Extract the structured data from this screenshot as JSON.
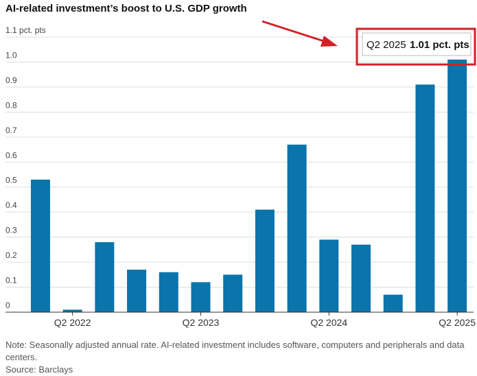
{
  "chart_data": {
    "type": "bar",
    "title": "AI-related investment’s boost to U.S. GDP growth",
    "categories": [
      null,
      "Q2 2022",
      null,
      null,
      null,
      "Q2 2023",
      null,
      null,
      null,
      "Q2 2024",
      null,
      null,
      null,
      "Q2 2025"
    ],
    "values": [
      0.53,
      0.01,
      0.28,
      0.17,
      0.16,
      0.12,
      0.15,
      0.41,
      0.67,
      0.29,
      0.27,
      0.07,
      0.91,
      1.01
    ],
    "color": "#0b74aa",
    "ylim": [
      0,
      1.1
    ],
    "yticks": [
      0,
      0.1,
      0.2,
      0.3,
      0.4,
      0.5,
      0.6,
      0.7,
      0.8,
      0.9,
      {
        "value": 1,
        "label": "1.0"
      },
      {
        "value": 1.1,
        "label": "1.1 pct. pts"
      }
    ],
    "grid": true,
    "tooltip": {
      "value_label": "1.01 pct. pts"
    },
    "note": "Note: Seasonally adjusted annual rate. AI-related investment includes software, computers and peripherals and data centers.",
    "source": "Source: Barclays"
  }
}
